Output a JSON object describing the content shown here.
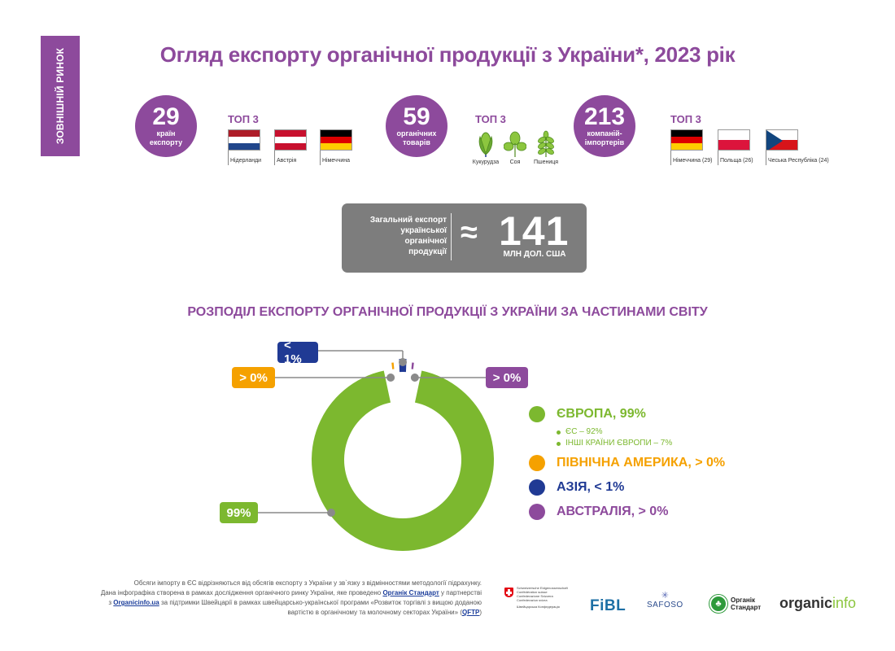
{
  "side_tab": "ЗОВНІШНІЙ РИНОК",
  "title": "Огляд експорту органічної продукції з України*, 2023 рік",
  "stats": [
    {
      "number": "29",
      "label_line1": "країн",
      "label_line2": "експорту",
      "top3_label": "ТОП 3",
      "items": [
        {
          "name": "Нідерланди",
          "icon": "flag-netherlands",
          "colors": [
            "#ae1c28",
            "#ffffff",
            "#21468b"
          ]
        },
        {
          "name": "Австрія",
          "icon": "flag-austria",
          "colors": [
            "#c8102e",
            "#ffffff",
            "#c8102e"
          ]
        },
        {
          "name": "Німеччина",
          "icon": "flag-germany",
          "colors": [
            "#000000",
            "#dd0000",
            "#ffce00"
          ]
        }
      ]
    },
    {
      "number": "59",
      "label_line1": "органічних",
      "label_line2": "товарів",
      "top3_label": "ТОП 3",
      "items": [
        {
          "name": "Кукурудза",
          "icon": "corn-icon"
        },
        {
          "name": "Соя",
          "icon": "soy-icon"
        },
        {
          "name": "Пшениця",
          "icon": "wheat-icon"
        }
      ]
    },
    {
      "number": "213",
      "label_line1": "компаній-",
      "label_line2": "імпортерів",
      "top3_label": "ТОП 3",
      "items": [
        {
          "name": "Німеччина (29)",
          "icon": "flag-germany",
          "colors": [
            "#000000",
            "#dd0000",
            "#ffce00"
          ]
        },
        {
          "name": "Польща (26)",
          "icon": "flag-poland",
          "colors": [
            "#ffffff",
            "#dc143c"
          ]
        },
        {
          "name": "Чеська Республіка (24)",
          "icon": "flag-czech",
          "colors": [
            "#ffffff",
            "#d7141a"
          ],
          "triangle": "#11457e"
        }
      ]
    }
  ],
  "total": {
    "desc_lines": [
      "Загальний експорт",
      "української",
      "органічної",
      "продукції"
    ],
    "approx": "≈",
    "value": "141",
    "unit": "МЛН ДОЛ. США"
  },
  "colors": {
    "brand_purple": "#8d4a9c",
    "europe": "#7cb82f",
    "north_america": "#f5a100",
    "asia": "#203a94",
    "australia": "#8d4a9c",
    "connector": "#8a8a8a"
  },
  "chart_data": {
    "type": "pie",
    "subtype": "donut",
    "title": "РОЗПОДІЛ ЕКСПОРТУ ОРГАНІЧНОЇ ПРОДУКЦІЇ З УКРАЇНИ ЗА ЧАСТИНАМИ СВІТУ",
    "slices": [
      {
        "name": "ЄВРОПА",
        "value": 99,
        "label": "99%",
        "legend": "ЄВРОПА, 99%",
        "color": "#7cb82f",
        "breakdown": [
          {
            "name": "ЄС",
            "value": 92,
            "label": "ЄС – 92%"
          },
          {
            "name": "ІНШІ КРАЇНИ ЄВРОПИ",
            "value": 7,
            "label": "ІНШІ КРАЇНИ ЄВРОПИ – 7%"
          }
        ]
      },
      {
        "name": "ПІВНІЧНА АМЕРИКА",
        "value": 0.1,
        "label": "> 0%",
        "legend": "ПІВНІЧНА АМЕРИКА, > 0%",
        "color": "#f5a100"
      },
      {
        "name": "АЗІЯ",
        "value": 0.8,
        "label": "< 1%",
        "legend": "АЗІЯ, < 1%",
        "color": "#203a94"
      },
      {
        "name": "АВСТРАЛІЯ",
        "value": 0.1,
        "label": "> 0%",
        "legend": "АВСТРАЛІЯ, > 0%",
        "color": "#8d4a9c"
      }
    ],
    "legend_position": "right"
  },
  "footnote": {
    "line1": "Обсяги імпорту в ЄС відрізняються від обсягів експорту з України у зв`язку з відмінностями методології підрахунку.",
    "line2a": "Дана інфографіка створена в рамках дослідження органічного ринку України, яке проведено ",
    "link1": "Органік Стандарт",
    "line2b": " у партнерстві",
    "line3a": "з ",
    "link2": "Organicinfo.ua",
    "line3b": " за підтримки Швейцарії в рамках швейцарсько-української програми «Розвиток торгівлі з вищою доданою",
    "line4a": "вартістю в органічному та молочному секторах України» (",
    "link3": "QFTP",
    "line4b": ")"
  },
  "partners": {
    "swiss_lines": [
      "Schweizerische Eidgenossenschaft",
      "Confédération suisse",
      "Confederazione Svizzera",
      "Confederaziun svizra",
      "Швейцарська Конфедерація"
    ],
    "fibl": "FiBL",
    "safoso": "SAFOSO",
    "organik_line1": "Органік",
    "organik_line2": "Стандарт",
    "organicinfo_a": "organic",
    "organicinfo_b": "info"
  }
}
